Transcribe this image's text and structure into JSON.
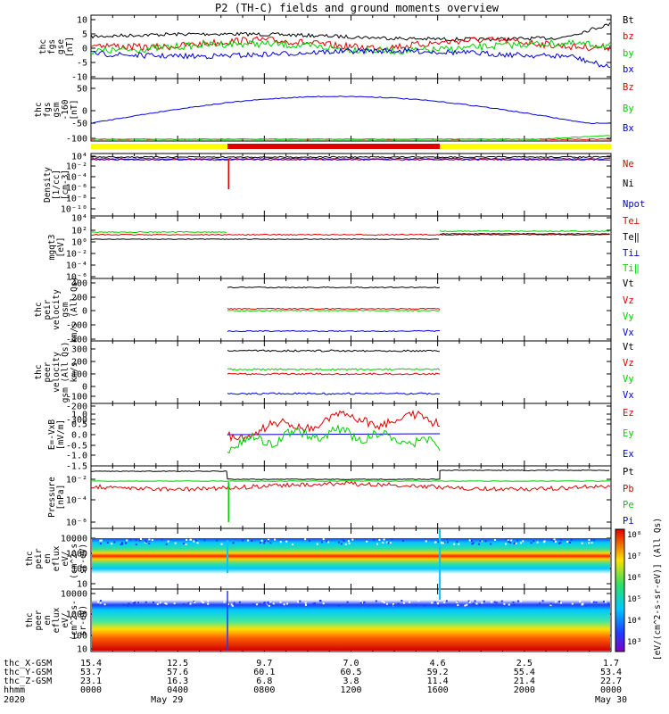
{
  "title": "P2 (TH-C) fields and ground moments overview",
  "colors": {
    "black": "#000000",
    "red": "#e00000",
    "green": "#00d000",
    "blue": "#0000e0",
    "yellow": "#ffff00"
  },
  "panels": [
    {
      "label": [
        "thc",
        "fgs",
        "gse",
        "[nT]"
      ],
      "yticks": [
        "10",
        "5",
        "0",
        "-5",
        "-10"
      ],
      "legend": [
        {
          "text": "Bt",
          "color": "black"
        },
        {
          "text": "bz",
          "color": "red"
        },
        {
          "text": "by",
          "color": "green"
        },
        {
          "text": "bx",
          "color": "blue"
        }
      ]
    },
    {
      "label": [
        "thc",
        "fgs",
        "gsm",
        "-160",
        "[nT]"
      ],
      "yticks": [
        "50",
        "0",
        "-50",
        "-100"
      ],
      "legend": [
        {
          "text": "Bz",
          "color": "red"
        },
        {
          "text": "By",
          "color": "green"
        },
        {
          "text": "Bx",
          "color": "blue"
        }
      ]
    },
    {
      "label": [
        "Density",
        "[1/cc]",
        "[cm-3]"
      ],
      "yticks": [
        "10⁴",
        "10⁻²",
        "10⁻⁴",
        "10⁻⁶",
        "10⁻⁸",
        "10⁻¹⁰",
        "10⁻¹²"
      ],
      "legend": [
        {
          "text": "Ne",
          "color": "red"
        },
        {
          "text": "Ni",
          "color": "black"
        },
        {
          "text": "Npot",
          "color": "blue"
        }
      ]
    },
    {
      "label": [
        "mgqt3",
        "[eV]"
      ],
      "yticks": [
        "10⁴",
        "10²",
        "10⁰",
        "10⁻²",
        "10⁻⁴",
        "10⁻⁶"
      ],
      "legend": [
        {
          "text": "Te⊥",
          "color": "red"
        },
        {
          "text": "Te‖",
          "color": "black"
        },
        {
          "text": "Ti⊥",
          "color": "blue"
        },
        {
          "text": "Ti‖",
          "color": "green"
        }
      ]
    },
    {
      "label": [
        "thc",
        "peir",
        "velocity",
        "gsm",
        "km/s (All Qs)"
      ],
      "yticks": [
        "400",
        "200",
        "0",
        "-200",
        "-400"
      ],
      "legend": [
        {
          "text": "Vt",
          "color": "black"
        },
        {
          "text": "Vz",
          "color": "red"
        },
        {
          "text": "Vy",
          "color": "green"
        },
        {
          "text": "Vx",
          "color": "blue"
        }
      ]
    },
    {
      "label": [
        "thc",
        "peer",
        "velocity",
        "gsm (All Qs)",
        "km/s"
      ],
      "yticks": [
        "300",
        "200",
        "100",
        "0",
        "-100",
        "-200",
        "-300"
      ],
      "legend": [
        {
          "text": "Vt",
          "color": "black"
        },
        {
          "text": "Vz",
          "color": "red"
        },
        {
          "text": "Vy",
          "color": "green"
        },
        {
          "text": "Vx",
          "color": "blue"
        }
      ]
    },
    {
      "label": [
        "E=-VxB",
        "[mV/m]"
      ],
      "yticks": [
        "1.0",
        "0.5",
        "0.0",
        "-0.5",
        "-1.0",
        "-1.5"
      ],
      "legend": [
        {
          "text": "Ez",
          "color": "red"
        },
        {
          "text": "Ey",
          "color": "green"
        },
        {
          "text": "Ex",
          "color": "blue"
        }
      ]
    },
    {
      "label": [
        "Pressure",
        "[nPa]"
      ],
      "yticks": [
        "10⁻²",
        "10⁻⁴",
        "10⁻⁶"
      ],
      "legend": [
        {
          "text": "Pt",
          "color": "black"
        },
        {
          "text": "Pb",
          "color": "red"
        },
        {
          "text": "Pe",
          "color": "green"
        },
        {
          "text": "Pi",
          "color": "blue"
        }
      ]
    },
    {
      "label": [
        "thc",
        "peir",
        "en",
        "eflux",
        "eV/",
        "(cm^2-s-",
        "sr-eV)"
      ],
      "yticks": [
        "10000",
        "1000",
        "100",
        "10"
      ],
      "legend": []
    },
    {
      "label": [
        "thc",
        "peer",
        "en",
        "eflux",
        "eV/",
        "(cm^2-s-",
        "sr-eV)"
      ],
      "yticks": [
        "10000",
        "1000",
        "100",
        "10"
      ],
      "legend": []
    }
  ],
  "colorbar": {
    "label": "[eV/(cm^2-s-sr-eV)] (All Qs)",
    "ticks": [
      "10⁸",
      "10⁷",
      "10⁶",
      "10⁵",
      "10⁴",
      "10³"
    ]
  },
  "footer": {
    "rows": [
      {
        "label": "thc_X-GSM",
        "values": [
          "15.4",
          "12.5",
          "9.7",
          "7.0",
          "4.6",
          "2.5",
          "1.7"
        ]
      },
      {
        "label": "thc_Y-GSM",
        "values": [
          "53.7",
          "57.6",
          "60.1",
          "60.5",
          "59.2",
          "55.4",
          "53.4"
        ]
      },
      {
        "label": "thc_Z-GSM",
        "values": [
          "23.1",
          "16.3",
          "6.8",
          "3.8",
          "11.4",
          "21.4",
          "22.7"
        ]
      },
      {
        "label": "hhmm",
        "values": [
          "0000",
          "0400",
          "0800",
          "1200",
          "1600",
          "2000",
          "0000"
        ]
      }
    ],
    "year": "2020",
    "date_start": "May 29",
    "date_end": "May 30"
  },
  "chart_data": [
    {
      "type": "line",
      "title": "P2 (TH-C) fields and ground moments overview",
      "ylabel": "thc fgs gse [nT]",
      "ylim": [
        -10,
        10
      ],
      "series": [
        {
          "name": "Bt",
          "values": [
            4,
            4.5,
            5,
            5,
            4.5,
            5,
            6,
            9
          ]
        },
        {
          "name": "bz",
          "values": [
            1,
            2,
            2,
            0,
            3,
            1,
            1,
            2
          ]
        },
        {
          "name": "by",
          "values": [
            -1,
            0,
            0,
            -2,
            1,
            0,
            0,
            -3
          ]
        },
        {
          "name": "bx",
          "values": [
            -1,
            -3,
            -4,
            -4,
            -3,
            -3,
            -3,
            -6
          ]
        }
      ]
    },
    {
      "type": "line",
      "ylabel": "thc fgs gsm -160 [nT]",
      "ylim": [
        -125,
        50
      ],
      "series": [
        {
          "name": "Bz",
          "values": [
            -120,
            -120,
            -120,
            -120,
            -120,
            -120,
            -120,
            -118
          ]
        },
        {
          "name": "By",
          "values": [
            -120,
            -120,
            -120,
            -120,
            -120,
            -120,
            -116,
            -105
          ]
        },
        {
          "name": "Bx",
          "values": [
            -50,
            -40,
            -5,
            25,
            40,
            35,
            10,
            -30
          ]
        }
      ]
    },
    {
      "type": "line",
      "ylabel": "Density [1/cc] [cm-3]",
      "log": true,
      "series": [
        {
          "name": "Ne",
          "values": [
            1000,
            1000,
            1000,
            1000,
            1000,
            1000,
            1000
          ]
        },
        {
          "name": "Ni",
          "values": [
            3000,
            3000,
            3000,
            3000,
            3000,
            3000,
            3000
          ]
        },
        {
          "name": "Npot",
          "values": [
            2000,
            2000,
            2000,
            2000,
            2000,
            2000,
            2000
          ]
        }
      ]
    },
    {
      "type": "line",
      "ylabel": "mgqt3 [eV]",
      "log": true,
      "series": [
        {
          "name": "Te⊥",
          "values": [
            100,
            100,
            100,
            100,
            100,
            100
          ]
        },
        {
          "name": "Te‖",
          "values": [
            1,
            1,
            1,
            1,
            100,
            100
          ]
        },
        {
          "name": "Ti‖",
          "values": [
            100,
            100,
            100,
            100,
            200,
            200
          ]
        }
      ]
    },
    {
      "type": "line",
      "ylabel": "thc peir velocity gsm km/s (All Qs)",
      "ylim": [
        -400,
        400
      ],
      "series": [
        {
          "name": "Vt",
          "values": [
            290,
            290
          ]
        },
        {
          "name": "Vz",
          "values": [
            10,
            10
          ]
        },
        {
          "name": "Vy",
          "values": [
            0,
            0
          ]
        },
        {
          "name": "Vx",
          "values": [
            -290,
            -290
          ]
        }
      ]
    },
    {
      "type": "line",
      "ylabel": "thc peer velocity gsm (All Qs) km/s",
      "ylim": [
        -300,
        300
      ],
      "series": [
        {
          "name": "Vt",
          "values": [
            220,
            220
          ]
        },
        {
          "name": "Vz",
          "values": [
            10,
            10
          ]
        },
        {
          "name": "Vy",
          "values": [
            30,
            30
          ]
        },
        {
          "name": "Vx",
          "values": [
            -220,
            -220
          ]
        }
      ]
    },
    {
      "type": "line",
      "ylabel": "E=-VxB [mV/m]",
      "ylim": [
        -1.5,
        1.2
      ],
      "series": [
        {
          "name": "Ez",
          "values": [
            0.2,
            0.5,
            0.8,
            0.8,
            0.6,
            0.6
          ]
        },
        {
          "name": "Ey",
          "values": [
            -0.3,
            -0.5,
            -0.4,
            0.1,
            -0.2,
            -0.1
          ]
        },
        {
          "name": "Ex",
          "values": [
            0,
            0,
            0,
            0,
            0,
            0
          ]
        }
      ]
    },
    {
      "type": "line",
      "ylabel": "Pressure [nPa]",
      "log": true,
      "series": [
        {
          "name": "Pt",
          "values": [
            0.05,
            0.05,
            0.03,
            0.03,
            0.05,
            0.05
          ]
        },
        {
          "name": "Pb",
          "values": [
            0.005,
            0.003,
            0.005,
            0.005,
            0.003,
            0.01
          ]
        },
        {
          "name": "Pe",
          "values": [
            0.01,
            0.01,
            0.01,
            0.01,
            0.01,
            0.01
          ]
        }
      ]
    },
    {
      "type": "heatmap",
      "ylabel": "thc peir en eflux eV/(cm^2-s-sr-eV)",
      "ylim": [
        10,
        10000
      ]
    },
    {
      "type": "heatmap",
      "ylabel": "thc peer en eflux eV/(cm^2-s-sr-eV)",
      "ylim": [
        10,
        10000
      ]
    }
  ]
}
